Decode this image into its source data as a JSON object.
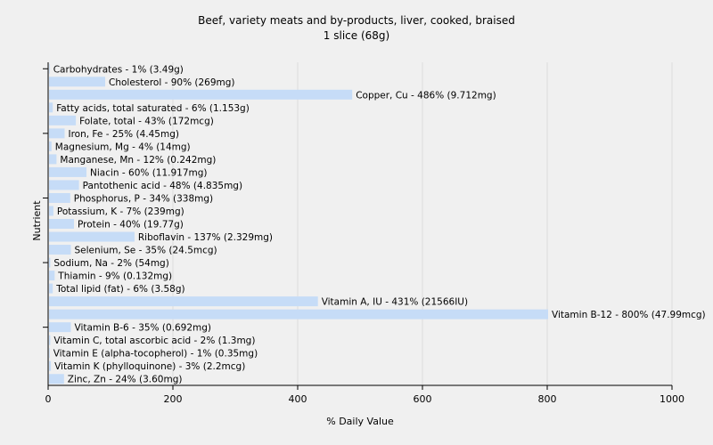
{
  "chart_data": {
    "type": "bar",
    "orientation": "horizontal",
    "title": "Beef,  variety meats and by-products, liver, cooked, braised",
    "subtitle": "1 slice (68g)",
    "xlabel": "% Daily Value",
    "ylabel": "Nutrient",
    "xlim": [
      0,
      1000
    ],
    "xticks": [
      0,
      200,
      400,
      600,
      800,
      1000
    ],
    "grid": true,
    "bar_color": "#c6dcf7",
    "categories": [
      "Carbohydrates - 1% (3.49g)",
      "Cholesterol - 90% (269mg)",
      "Copper, Cu - 486% (9.712mg)",
      "Fatty acids, total saturated - 6% (1.153g)",
      "Folate, total - 43% (172mcg)",
      "Iron, Fe - 25% (4.45mg)",
      "Magnesium, Mg - 4% (14mg)",
      "Manganese, Mn - 12% (0.242mg)",
      "Niacin - 60% (11.917mg)",
      "Pantothenic acid - 48% (4.835mg)",
      "Phosphorus, P - 34% (338mg)",
      "Potassium, K - 7% (239mg)",
      "Protein - 40% (19.77g)",
      "Riboflavin - 137% (2.329mg)",
      "Selenium, Se - 35% (24.5mcg)",
      "Sodium, Na - 2% (54mg)",
      "Thiamin - 9% (0.132mg)",
      "Total lipid (fat) - 6% (3.58g)",
      "Vitamin A, IU - 431% (21566IU)",
      "Vitamin B-12 - 800% (47.99mcg)",
      "Vitamin B-6 - 35% (0.692mg)",
      "Vitamin C, total ascorbic acid - 2% (1.3mg)",
      "Vitamin E (alpha-tocopherol) - 1% (0.35mg)",
      "Vitamin K (phylloquinone) - 3% (2.2mcg)",
      "Zinc, Zn - 24% (3.60mg)"
    ],
    "values": [
      1,
      90,
      486,
      6,
      43,
      25,
      4,
      12,
      60,
      48,
      34,
      7,
      40,
      137,
      35,
      2,
      9,
      6,
      431,
      800,
      35,
      2,
      1,
      3,
      24
    ]
  }
}
